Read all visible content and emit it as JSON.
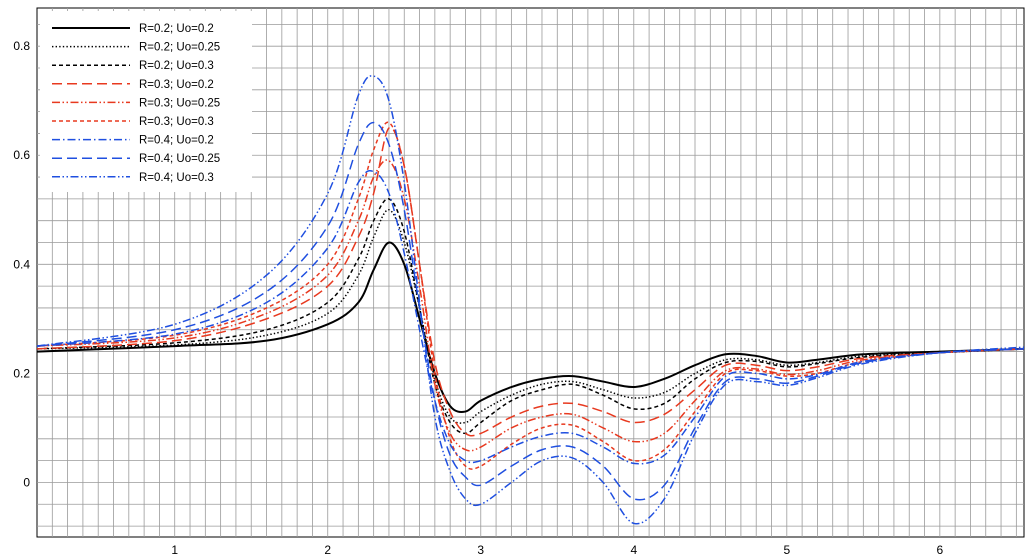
{
  "chart_data": {
    "type": "line",
    "title": "",
    "xlabel": "",
    "ylabel": "",
    "xlim": [
      0.1,
      6.55
    ],
    "ylim": [
      -0.1,
      0.87
    ],
    "xticks": [
      1,
      2,
      3,
      4,
      5,
      6
    ],
    "yticks": [
      0,
      0.2,
      0.4,
      0.6,
      0.8
    ],
    "xtick_labels": [
      "1",
      "2",
      "3",
      "4",
      "5",
      "6"
    ],
    "ytick_labels": [
      "0",
      "0.2",
      "0.4",
      "0.6",
      "0.8"
    ],
    "grid": true,
    "legend_position": "top-left",
    "series": [
      {
        "name": "R=0.2; Uo=0.2",
        "color": "#000000",
        "style": "solid",
        "x": [
          0.1,
          1.0,
          1.6,
          2.0,
          2.2,
          2.3,
          2.4,
          2.5,
          2.6,
          2.7,
          2.8,
          2.9,
          3.0,
          3.2,
          3.4,
          3.6,
          3.8,
          4.0,
          4.2,
          4.4,
          4.6,
          4.8,
          5.0,
          5.2,
          5.5,
          6.0,
          6.55
        ],
        "y": [
          0.24,
          0.25,
          0.26,
          0.29,
          0.33,
          0.39,
          0.44,
          0.4,
          0.3,
          0.2,
          0.14,
          0.13,
          0.15,
          0.175,
          0.19,
          0.195,
          0.185,
          0.175,
          0.19,
          0.215,
          0.235,
          0.232,
          0.22,
          0.225,
          0.235,
          0.24,
          0.245
        ]
      },
      {
        "name": "R=0.2; Uo=0.25",
        "color": "#000000",
        "style": "dotted",
        "x": [
          0.1,
          1.0,
          1.6,
          2.0,
          2.2,
          2.3,
          2.4,
          2.5,
          2.6,
          2.7,
          2.8,
          2.9,
          3.0,
          3.2,
          3.4,
          3.6,
          3.8,
          4.0,
          4.2,
          4.4,
          4.6,
          4.8,
          5.0,
          5.2,
          5.5,
          6.0,
          6.55
        ],
        "y": [
          0.245,
          0.252,
          0.27,
          0.31,
          0.38,
          0.45,
          0.5,
          0.44,
          0.32,
          0.19,
          0.12,
          0.11,
          0.13,
          0.16,
          0.18,
          0.185,
          0.17,
          0.155,
          0.165,
          0.2,
          0.225,
          0.225,
          0.215,
          0.22,
          0.232,
          0.238,
          0.245
        ]
      },
      {
        "name": "R=0.2; Uo=0.3",
        "color": "#000000",
        "style": "dashed",
        "x": [
          0.1,
          1.0,
          1.6,
          2.0,
          2.2,
          2.3,
          2.4,
          2.5,
          2.6,
          2.7,
          2.8,
          2.9,
          3.0,
          3.2,
          3.4,
          3.6,
          3.8,
          4.0,
          4.2,
          4.4,
          4.6,
          4.8,
          5.0,
          5.2,
          5.5,
          6.0,
          6.55
        ],
        "y": [
          0.245,
          0.256,
          0.28,
          0.33,
          0.41,
          0.48,
          0.52,
          0.46,
          0.32,
          0.18,
          0.11,
          0.09,
          0.11,
          0.15,
          0.17,
          0.18,
          0.16,
          0.135,
          0.145,
          0.19,
          0.22,
          0.222,
          0.212,
          0.218,
          0.23,
          0.238,
          0.245
        ]
      },
      {
        "name": "R=0.3; Uo=0.2",
        "color": "#e8391f",
        "style": "longdash",
        "x": [
          0.1,
          1.0,
          1.6,
          2.0,
          2.2,
          2.3,
          2.4,
          2.5,
          2.6,
          2.7,
          2.8,
          2.9,
          3.0,
          3.2,
          3.4,
          3.6,
          3.8,
          4.0,
          4.2,
          4.4,
          4.6,
          4.8,
          5.0,
          5.2,
          5.5,
          6.0,
          6.55
        ],
        "y": [
          0.245,
          0.26,
          0.3,
          0.36,
          0.45,
          0.53,
          0.65,
          0.58,
          0.4,
          0.22,
          0.13,
          0.09,
          0.09,
          0.12,
          0.14,
          0.145,
          0.13,
          0.11,
          0.125,
          0.17,
          0.215,
          0.215,
          0.205,
          0.212,
          0.228,
          0.238,
          0.245
        ]
      },
      {
        "name": "R=0.3; Uo=0.25",
        "color": "#e8391f",
        "style": "dashdotdot",
        "x": [
          0.1,
          1.0,
          1.6,
          2.0,
          2.2,
          2.3,
          2.4,
          2.5,
          2.6,
          2.7,
          2.8,
          2.9,
          3.0,
          3.2,
          3.4,
          3.6,
          3.8,
          4.0,
          4.2,
          4.4,
          4.6,
          4.8,
          5.0,
          5.2,
          5.5,
          6.0,
          6.55
        ],
        "y": [
          0.25,
          0.265,
          0.31,
          0.38,
          0.48,
          0.56,
          0.59,
          0.52,
          0.36,
          0.18,
          0.09,
          0.06,
          0.065,
          0.1,
          0.12,
          0.125,
          0.1,
          0.075,
          0.09,
          0.15,
          0.205,
          0.208,
          0.198,
          0.205,
          0.225,
          0.238,
          0.245
        ]
      },
      {
        "name": "R=0.3; Uo=0.3",
        "color": "#e8391f",
        "style": "dashed",
        "x": [
          0.1,
          1.0,
          1.6,
          2.0,
          2.2,
          2.3,
          2.4,
          2.5,
          2.6,
          2.7,
          2.8,
          2.9,
          3.0,
          3.2,
          3.4,
          3.6,
          3.8,
          4.0,
          4.2,
          4.4,
          4.6,
          4.8,
          5.0,
          5.2,
          5.5,
          6.0,
          6.55
        ],
        "y": [
          0.25,
          0.27,
          0.32,
          0.4,
          0.52,
          0.61,
          0.66,
          0.58,
          0.4,
          0.2,
          0.08,
          0.03,
          0.03,
          0.07,
          0.1,
          0.105,
          0.075,
          0.04,
          0.06,
          0.13,
          0.2,
          0.205,
          0.195,
          0.2,
          0.222,
          0.238,
          0.245
        ]
      },
      {
        "name": "R=0.4; Uo=0.2",
        "color": "#1f4fe0",
        "style": "dashdot",
        "x": [
          0.1,
          1.0,
          1.6,
          2.0,
          2.2,
          2.3,
          2.4,
          2.5,
          2.6,
          2.7,
          2.8,
          2.9,
          3.0,
          3.2,
          3.4,
          3.6,
          3.8,
          4.0,
          4.2,
          4.4,
          4.6,
          4.8,
          5.0,
          5.2,
          5.5,
          6.0,
          6.55
        ],
        "y": [
          0.25,
          0.272,
          0.33,
          0.43,
          0.55,
          0.57,
          0.53,
          0.42,
          0.28,
          0.15,
          0.07,
          0.04,
          0.04,
          0.065,
          0.085,
          0.09,
          0.065,
          0.035,
          0.05,
          0.12,
          0.195,
          0.2,
          0.19,
          0.198,
          0.222,
          0.238,
          0.245
        ]
      },
      {
        "name": "R=0.4; Uo=0.25",
        "color": "#1f4fe0",
        "style": "longdash",
        "x": [
          0.1,
          1.0,
          1.6,
          2.0,
          2.2,
          2.3,
          2.4,
          2.5,
          2.6,
          2.7,
          2.8,
          2.9,
          3.0,
          3.2,
          3.4,
          3.6,
          3.8,
          4.0,
          4.2,
          4.4,
          4.6,
          4.8,
          5.0,
          5.2,
          5.5,
          6.0,
          6.55
        ],
        "y": [
          0.25,
          0.28,
          0.35,
          0.47,
          0.62,
          0.66,
          0.62,
          0.5,
          0.32,
          0.15,
          0.05,
          0.01,
          -0.005,
          0.03,
          0.06,
          0.065,
          0.03,
          -0.03,
          -0.005,
          0.1,
          0.185,
          0.19,
          0.182,
          0.195,
          0.22,
          0.238,
          0.245
        ]
      },
      {
        "name": "R=0.4; Uo=0.3",
        "color": "#1f4fe0",
        "style": "dashdotdot",
        "x": [
          0.1,
          1.0,
          1.6,
          2.0,
          2.2,
          2.3,
          2.4,
          2.5,
          2.6,
          2.7,
          2.8,
          2.9,
          3.0,
          3.2,
          3.4,
          3.6,
          3.8,
          4.0,
          4.2,
          4.4,
          4.6,
          4.8,
          5.0,
          5.2,
          5.5,
          6.0,
          6.55
        ],
        "y": [
          0.25,
          0.29,
          0.38,
          0.53,
          0.71,
          0.745,
          0.7,
          0.55,
          0.33,
          0.12,
          0.02,
          -0.03,
          -0.04,
          0.0,
          0.04,
          0.045,
          0.0,
          -0.075,
          -0.03,
          0.09,
          0.18,
          0.185,
          0.178,
          0.192,
          0.218,
          0.238,
          0.248
        ]
      }
    ]
  }
}
